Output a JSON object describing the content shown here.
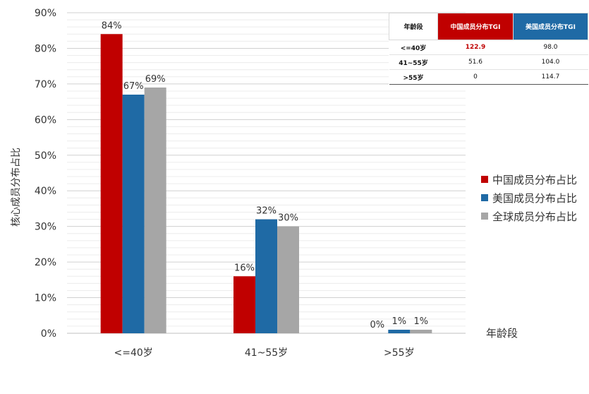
{
  "chart_data": {
    "type": "bar",
    "categories": [
      "<=40岁",
      "41~55岁",
      ">55岁"
    ],
    "series": [
      {
        "name": "中国成员分布占比",
        "values": [
          84,
          16,
          0
        ],
        "labels": [
          "84%",
          "16%",
          "0%"
        ]
      },
      {
        "name": "美国成员分布占比",
        "values": [
          67,
          32,
          1
        ],
        "labels": [
          "67%",
          "32%",
          "1%"
        ]
      },
      {
        "name": "全球成员分布占比",
        "values": [
          69,
          30,
          1
        ],
        "labels": [
          "69%",
          "30%",
          "1%"
        ]
      }
    ],
    "ylim": [
      0,
      90
    ],
    "yticks": [
      "0%",
      "10%",
      "20%",
      "30%",
      "40%",
      "50%",
      "60%",
      "70%",
      "80%",
      "90%"
    ],
    "xlabel": "年龄段",
    "ylabel": "核心成员分布占比",
    "legend_position": "right",
    "grid": true
  },
  "colors": {
    "china": "#c00000",
    "usa": "#1f6aa5",
    "global": "#a6a6a6"
  },
  "tgi_table": {
    "headers": [
      "年龄段",
      "中国成员分布TGI",
      "美国成员分布TGI"
    ],
    "rows": [
      {
        "age": "<=40岁",
        "china": "122.9",
        "usa": "98.0"
      },
      {
        "age": "41~55岁",
        "china": "51.6",
        "usa": "104.0"
      },
      {
        "age": ">55岁",
        "china": "0",
        "usa": "114.7"
      }
    ]
  }
}
